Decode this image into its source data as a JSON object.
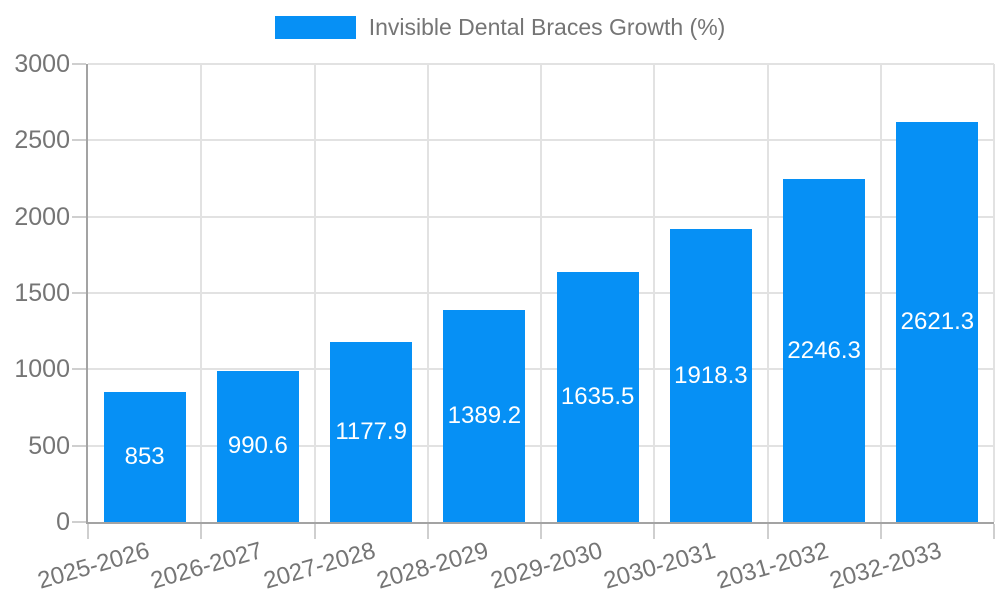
{
  "legend": {
    "label": "Invisible Dental Braces Growth (%)"
  },
  "colors": {
    "bar": "#0690f5",
    "grid": "#e2e2e2",
    "axis": "#a3a3a3",
    "tick": "#cfcfcf",
    "tick_label": "#757575",
    "value_label": "#ffffff",
    "background": "#ffffff"
  },
  "chart_data": {
    "type": "bar",
    "categories": [
      "2025-2026",
      "2026-2027",
      "2027-2028",
      "2028-2029",
      "2029-2030",
      "2030-2031",
      "2031-2032",
      "2032-2033"
    ],
    "series": [
      {
        "name": "Invisible Dental Braces Growth (%)",
        "values": [
          853,
          990.6,
          1177.9,
          1389.2,
          1635.5,
          1918.3,
          2246.3,
          2621.3
        ]
      }
    ],
    "value_labels": [
      "853",
      "990.6",
      "1177.9",
      "1389.2",
      "1635.5",
      "1918.3",
      "2246.3",
      "2621.3"
    ],
    "title": "",
    "xlabel": "",
    "ylabel": "",
    "ylim": [
      0,
      3000
    ],
    "yticks": [
      0,
      500,
      1000,
      1500,
      2000,
      2500,
      3000
    ],
    "ytick_labels": [
      "0",
      "500",
      "1000",
      "1500",
      "2000",
      "2500",
      "3000"
    ],
    "grid": true,
    "legend_position": "top-center",
    "x_label_rotation_deg": -16,
    "value_label_position": "center-inside"
  }
}
